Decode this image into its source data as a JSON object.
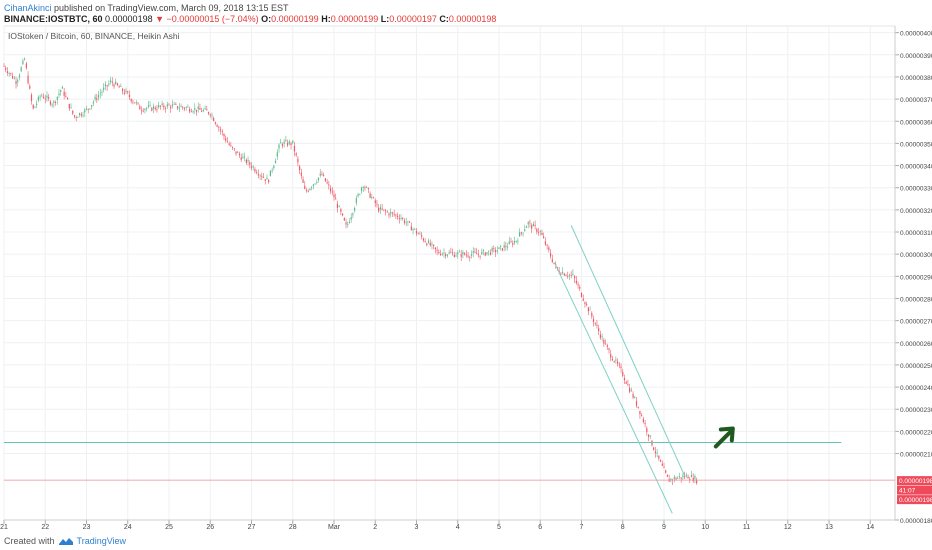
{
  "header": {
    "author": "CihanAkinci",
    "published": "published on TradingView.com, March 09, 2018 13:15 EST"
  },
  "ohlc": {
    "symbol": "BINANCE:IOSTBTC, 60",
    "last": "0.00000198",
    "arrow": "▼",
    "change": "−0.00000015 (−7.04%)",
    "o_label": "O:",
    "o": "0.00000199",
    "h_label": "H:",
    "h": "0.00000199",
    "l_label": "L:",
    "l": "0.00000197",
    "c_label": "C:",
    "c": "0.00000198"
  },
  "pane_title": "IOStoken / Bitcoin, 60, BINANCE, Heikin Ashi",
  "footer": {
    "created": "Created with",
    "brand": "TradingView"
  },
  "colors": {
    "up": "#5bb98c",
    "down": "#ef5766",
    "hline": "#66c2b4",
    "channel": "#7fd1c5",
    "arrow": "#1e5a1e",
    "grid": "#eef1f4"
  },
  "chart_data": {
    "type": "candlestick",
    "style": "Heikin Ashi",
    "ylim": [
      1.8e-06,
      4.03e-06
    ],
    "xlim": [
      0,
      21.6
    ],
    "y_ticks": [
      "0.00000400",
      "0.00000390",
      "0.00000380",
      "0.00000370",
      "0.00000360",
      "0.00000350",
      "0.00000340",
      "0.00000330",
      "0.00000320",
      "0.00000310",
      "0.00000300",
      "0.00000290",
      "0.00000280",
      "0.00000270",
      "0.00000260",
      "0.00000250",
      "0.00000240",
      "0.00000230",
      "0.00000220",
      "0.00000210",
      "0.00000180"
    ],
    "x_ticks": [
      {
        "label": "21",
        "x": 0
      },
      {
        "label": "22",
        "x": 1
      },
      {
        "label": "23",
        "x": 2
      },
      {
        "label": "24",
        "x": 3
      },
      {
        "label": "25",
        "x": 4
      },
      {
        "label": "26",
        "x": 5
      },
      {
        "label": "27",
        "x": 6
      },
      {
        "label": "28",
        "x": 7
      },
      {
        "label": "Mar",
        "x": 8
      },
      {
        "label": "2",
        "x": 9
      },
      {
        "label": "3",
        "x": 10
      },
      {
        "label": "4",
        "x": 11
      },
      {
        "label": "5",
        "x": 12
      },
      {
        "label": "6",
        "x": 13
      },
      {
        "label": "7",
        "x": 14
      },
      {
        "label": "8",
        "x": 15
      },
      {
        "label": "9",
        "x": 16
      },
      {
        "label": "10",
        "x": 17
      },
      {
        "label": "11",
        "x": 18
      },
      {
        "label": "12",
        "x": 19
      },
      {
        "label": "13",
        "x": 20
      },
      {
        "label": "14",
        "x": 21
      }
    ],
    "price_path": [
      [
        0,
        385
      ],
      [
        0.3,
        378
      ],
      [
        0.5,
        388
      ],
      [
        0.7,
        365
      ],
      [
        0.9,
        372
      ],
      [
        1.2,
        368
      ],
      [
        1.4,
        375
      ],
      [
        1.7,
        362
      ],
      [
        2.0,
        365
      ],
      [
        2.3,
        372
      ],
      [
        2.6,
        378
      ],
      [
        3.0,
        372
      ],
      [
        3.3,
        366
      ],
      [
        3.6,
        366
      ],
      [
        4.0,
        367
      ],
      [
        4.5,
        366
      ],
      [
        5.0,
        364
      ],
      [
        5.5,
        348
      ],
      [
        6.0,
        340
      ],
      [
        6.4,
        333
      ],
      [
        6.7,
        350
      ],
      [
        7.0,
        350
      ],
      [
        7.3,
        328
      ],
      [
        7.7,
        336
      ],
      [
        8.0,
        326
      ],
      [
        8.3,
        312
      ],
      [
        8.7,
        332
      ],
      [
        9.1,
        320
      ],
      [
        9.6,
        317
      ],
      [
        10.0,
        310
      ],
      [
        10.5,
        301
      ],
      [
        11.0,
        300
      ],
      [
        11.5,
        300
      ],
      [
        12.0,
        302
      ],
      [
        12.4,
        306
      ],
      [
        12.7,
        314
      ],
      [
        13.0,
        310
      ],
      [
        13.4,
        293
      ],
      [
        13.8,
        290
      ],
      [
        14.2,
        274
      ],
      [
        14.6,
        258
      ],
      [
        15.0,
        246
      ],
      [
        15.4,
        230
      ],
      [
        15.7,
        215
      ],
      [
        15.9,
        206
      ],
      [
        16.1,
        198
      ],
      [
        16.3,
        199
      ],
      [
        16.6,
        200
      ],
      [
        16.8,
        198
      ]
    ],
    "last_price": "0.00000198",
    "last_price_labels": [
      "0.00000198",
      "41:07",
      "0.00000198"
    ],
    "annotations": {
      "horizontal_line": 2.15e-06,
      "channel_upper": [
        [
          13.75,
          3.13e-06
        ],
        [
          16.5,
          2e-06
        ]
      ],
      "channel_lower": [
        [
          13.35,
          2.96e-06
        ],
        [
          16.2,
          1.83e-06
        ]
      ],
      "arrow_direction": "up"
    }
  }
}
